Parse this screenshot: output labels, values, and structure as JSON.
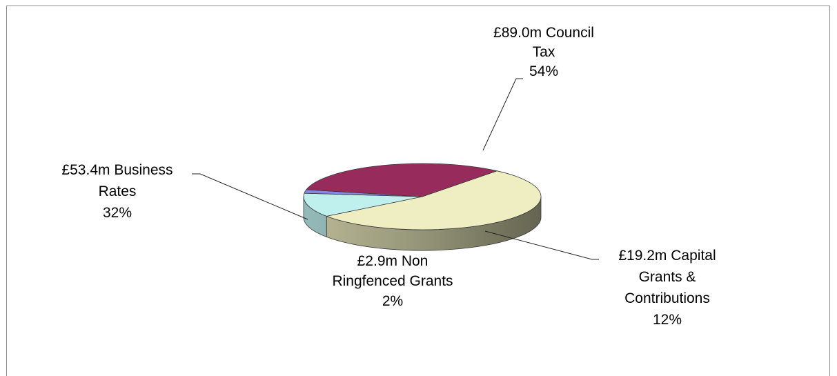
{
  "chart_data": {
    "type": "pie",
    "title": "",
    "value_unit": "£m",
    "slices": [
      {
        "label_lines": [
          "£89.0m Council",
          "Tax",
          "54%"
        ],
        "value": 89.0,
        "percent": 54,
        "color": "#eeeec2"
      },
      {
        "label_lines": [
          "£19.2m Capital",
          "Grants &",
          "Contributions",
          "12%"
        ],
        "value": 19.2,
        "percent": 12,
        "color": "#bff0ee"
      },
      {
        "label_lines": [
          "£2.9m Non",
          "Ringfenced Grants",
          "2%"
        ],
        "value": 2.9,
        "percent": 2,
        "color": "#8686e6"
      },
      {
        "label_lines": [
          "£53.4m Business",
          "Rates",
          "32%"
        ],
        "value": 53.4,
        "percent": 32,
        "color": "#972c5c"
      }
    ],
    "legend": "none",
    "style": "3d"
  }
}
